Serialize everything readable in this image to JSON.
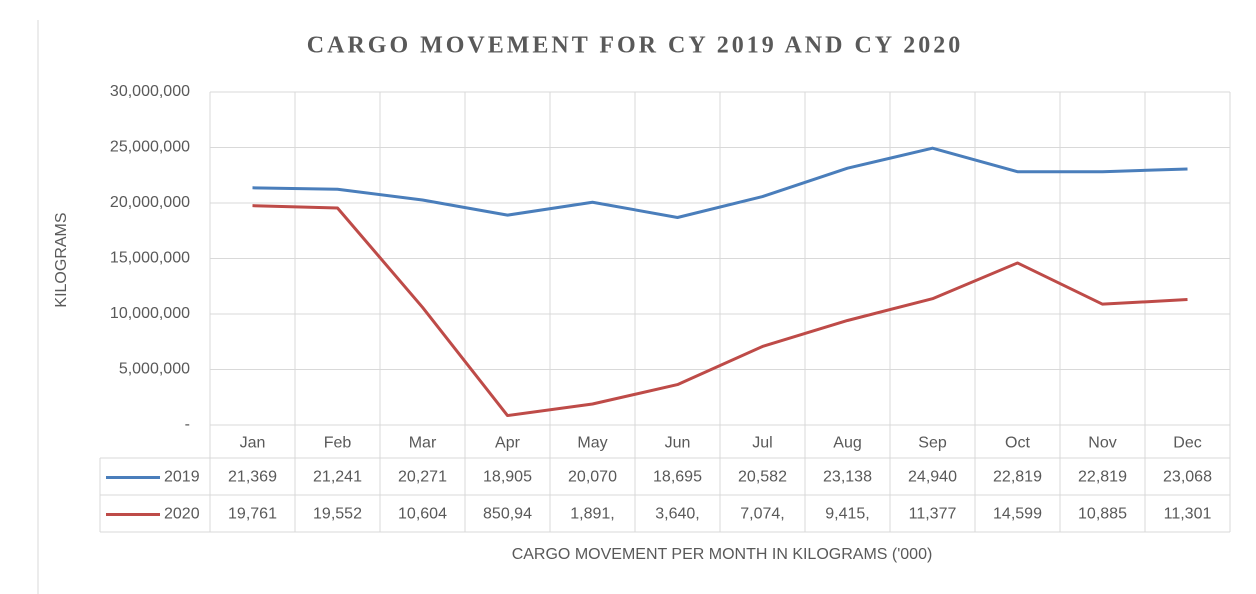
{
  "chart_data": {
    "type": "line",
    "title": "CARGO MOVEMENT FOR CY 2019 AND CY 2020",
    "y_label": "KILOGRAMS",
    "x_label": "CARGO MOVEMENT PER MONTH IN KILOGRAMS ('000)",
    "categories": [
      "Jan",
      "Feb",
      "Mar",
      "Apr",
      "May",
      "Jun",
      "Jul",
      "Aug",
      "Sep",
      "Oct",
      "Nov",
      "Dec"
    ],
    "series": [
      {
        "name": "2019",
        "color": "#4a7ebb",
        "values": [
          21369000,
          21241000,
          20271000,
          18905000,
          20070000,
          18695000,
          20582000,
          23138000,
          24940000,
          22819000,
          22819000,
          23068000
        ],
        "value_labels": [
          "21,369",
          "21,241",
          "20,271",
          "18,905",
          "20,070",
          "18,695",
          "20,582",
          "23,138",
          "24,940",
          "22,819",
          "22,819",
          "23,068"
        ]
      },
      {
        "name": "2020",
        "color": "#be4b48",
        "values": [
          19761000,
          19552000,
          10604000,
          850940,
          1891000,
          3640000,
          7074000,
          9415000,
          11377000,
          14599000,
          10885000,
          11301000
        ],
        "value_labels": [
          "19,761",
          "19,552",
          "10,604",
          "850,94",
          "1,891,",
          "3,640,",
          "7,074,",
          "9,415,",
          "11,377",
          "14,599",
          "10,885",
          "11,301"
        ]
      }
    ],
    "ylim": [
      0,
      30000000
    ],
    "yticks": [
      {
        "value": 0,
        "label": "-"
      },
      {
        "value": 5000000,
        "label": "5,000,000"
      },
      {
        "value": 10000000,
        "label": "10,000,000"
      },
      {
        "value": 15000000,
        "label": "15,000,000"
      },
      {
        "value": 20000000,
        "label": "20,000,000"
      },
      {
        "value": 25000000,
        "label": "25,000,000"
      },
      {
        "value": 30000000,
        "label": "30,000,000"
      }
    ],
    "grid": true
  }
}
